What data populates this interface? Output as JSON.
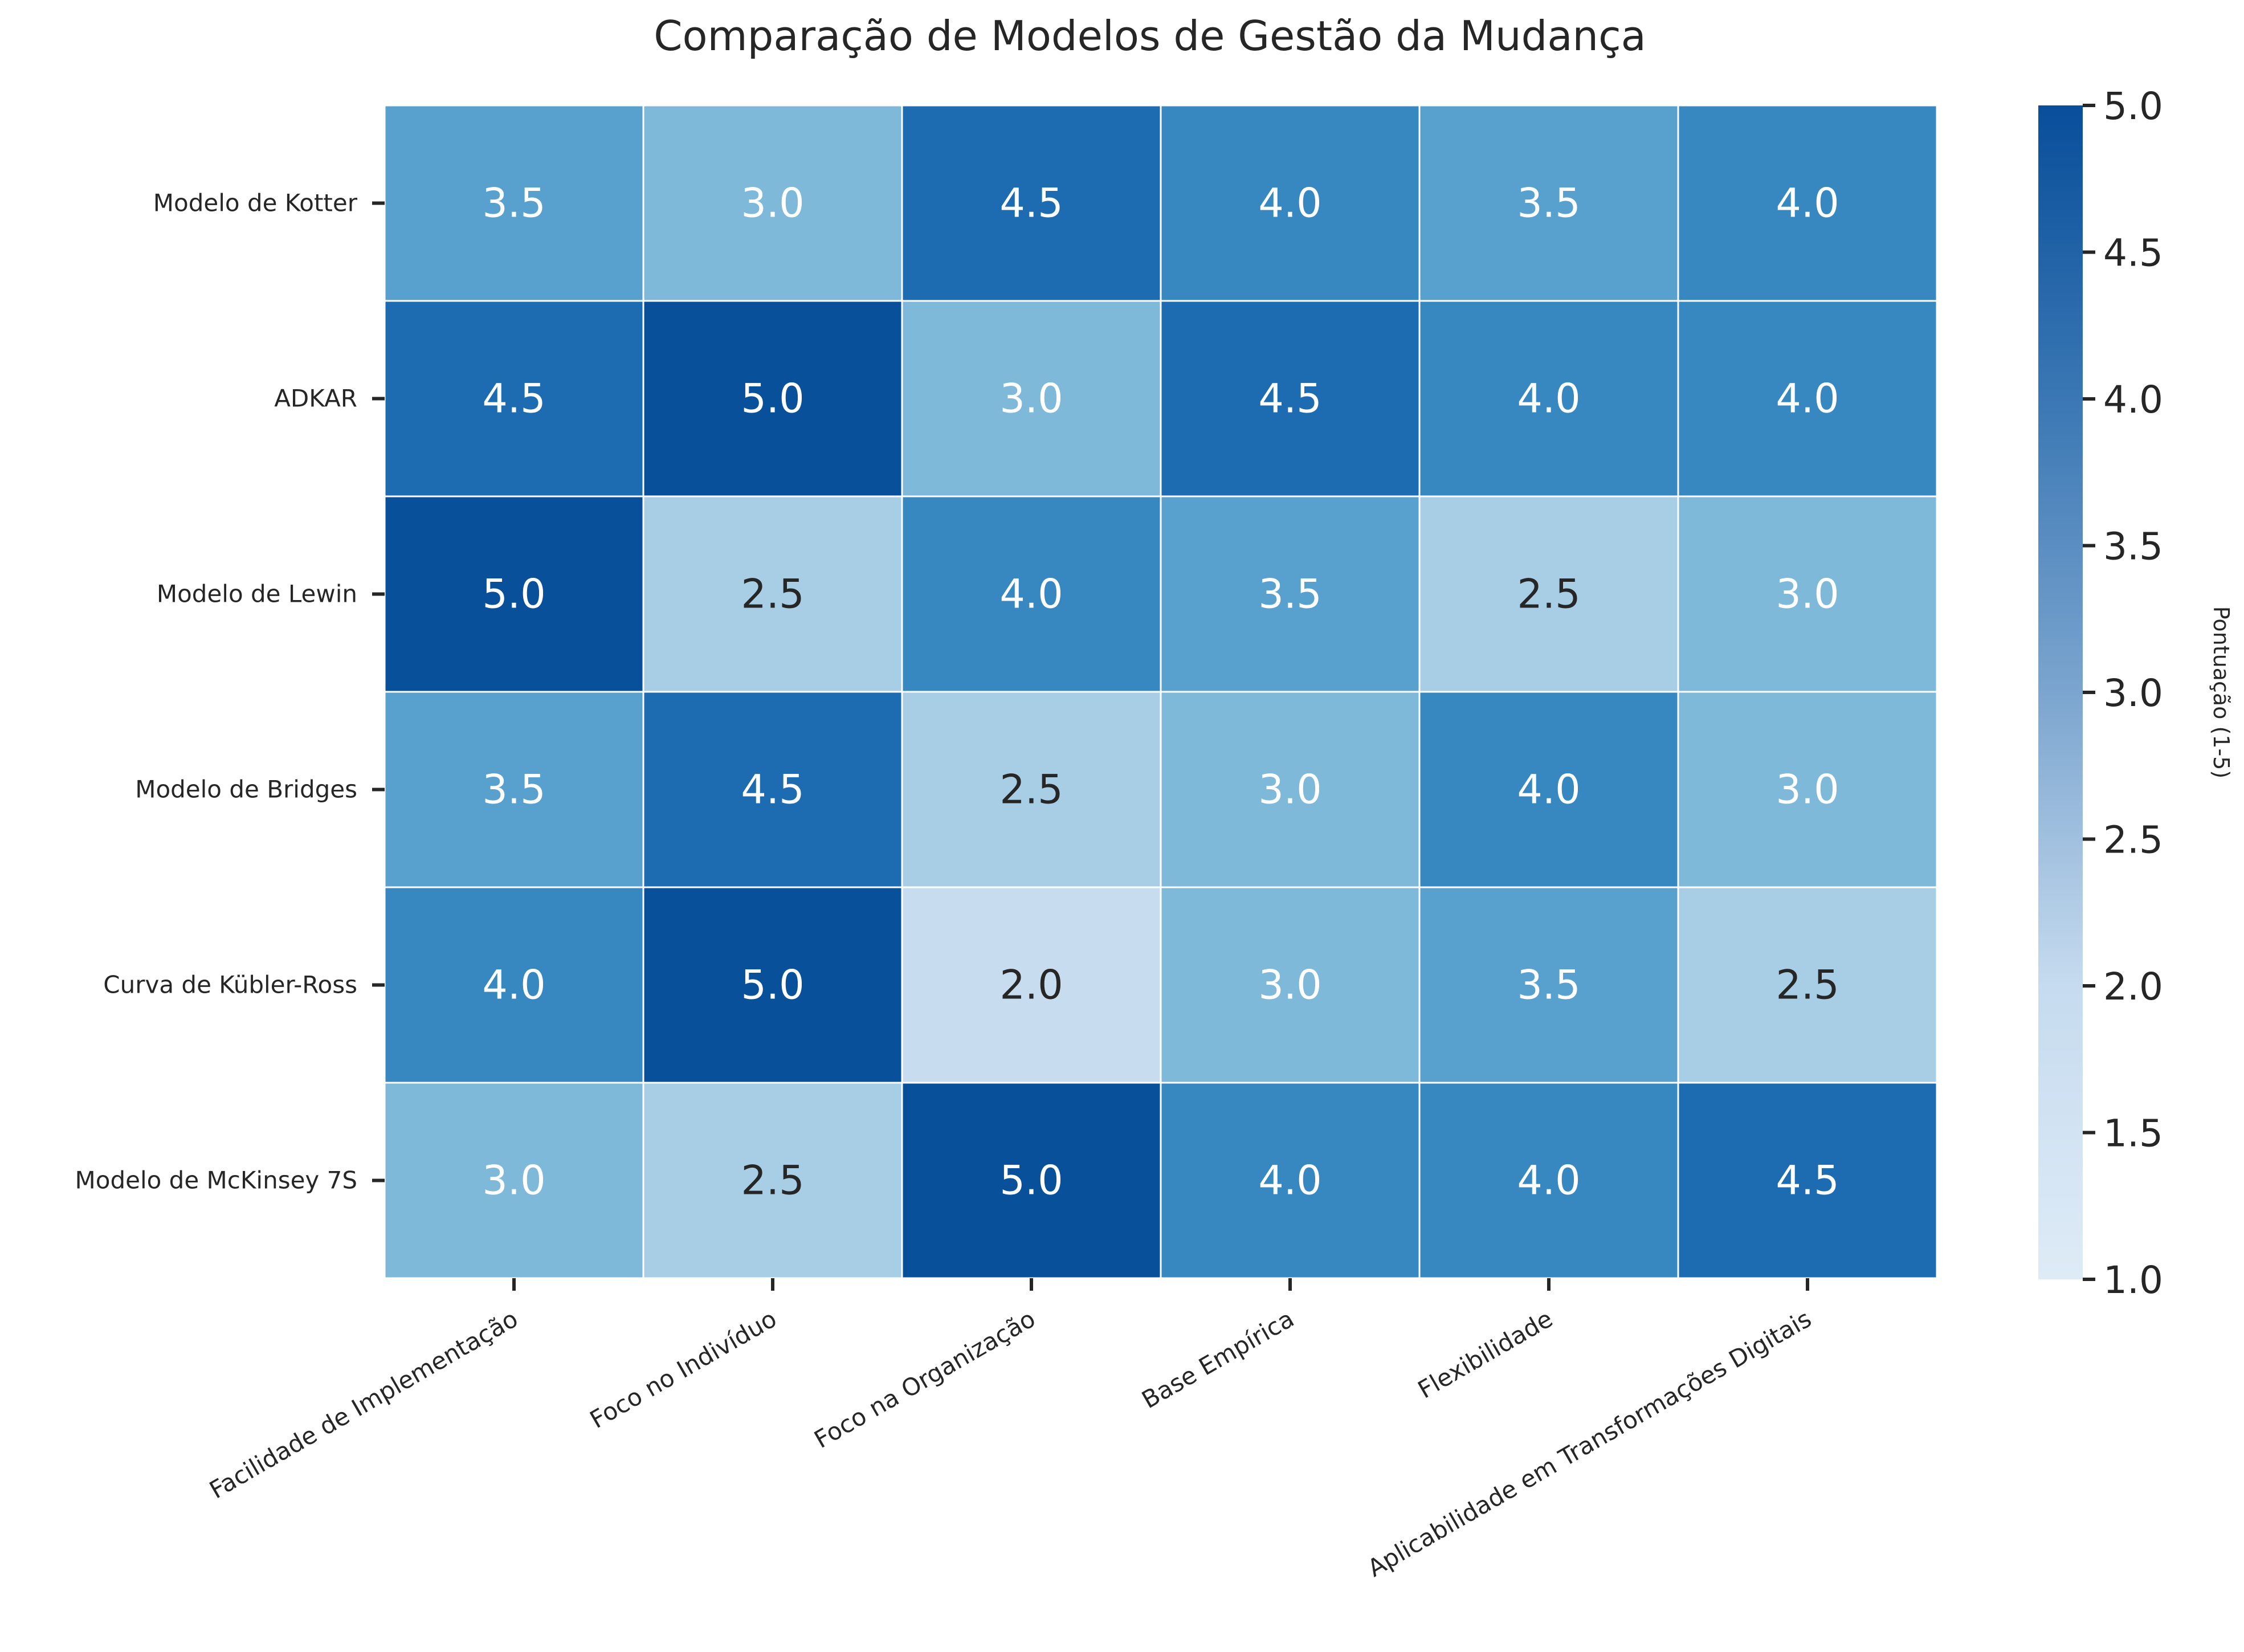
{
  "chart_data": {
    "type": "heatmap",
    "title": "Comparação de Modelos de Gestão da Mudança",
    "rows": [
      "Modelo de Kotter",
      "ADKAR",
      "Modelo de Lewin",
      "Modelo de Bridges",
      "Curva de Kübler-Ross",
      "Modelo de McKinsey 7S"
    ],
    "columns": [
      "Facilidade de Implementação",
      "Foco no Indivíduo",
      "Foco na Organização",
      "Base Empírica",
      "Flexibilidade",
      "Aplicabilidade em Transformações Digitais"
    ],
    "values": [
      [
        3.5,
        3.0,
        4.5,
        4.0,
        3.5,
        4.0
      ],
      [
        4.5,
        5.0,
        3.0,
        4.5,
        4.0,
        4.0
      ],
      [
        5.0,
        2.5,
        4.0,
        3.5,
        2.5,
        3.0
      ],
      [
        3.5,
        4.5,
        2.5,
        3.0,
        4.0,
        3.0
      ],
      [
        4.0,
        5.0,
        2.0,
        3.0,
        3.5,
        2.5
      ],
      [
        3.0,
        2.5,
        5.0,
        4.0,
        4.0,
        4.5
      ]
    ],
    "colorbar": {
      "label": "Pontuação (1-5)",
      "range": [
        1,
        5
      ],
      "ticks": [
        "1.0",
        "1.5",
        "2.0",
        "2.5",
        "3.0",
        "3.5",
        "4.0",
        "4.5",
        "5.0"
      ],
      "colormap": "Blues",
      "low_color": "#deebf7",
      "high_color": "#08519c"
    },
    "grid": false,
    "annotations": true
  }
}
